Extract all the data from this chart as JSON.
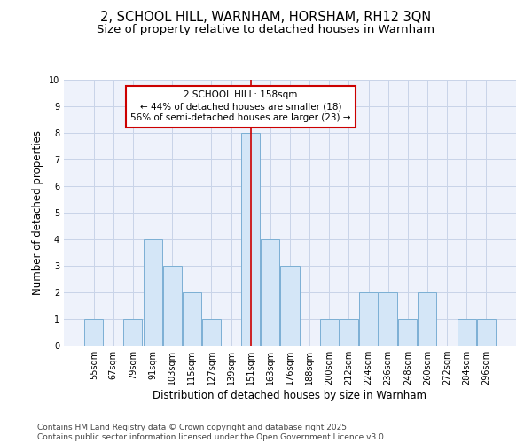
{
  "title1": "2, SCHOOL HILL, WARNHAM, HORSHAM, RH12 3QN",
  "title2": "Size of property relative to detached houses in Warnham",
  "xlabel": "Distribution of detached houses by size in Warnham",
  "ylabel": "Number of detached properties",
  "bins": [
    "55sqm",
    "67sqm",
    "79sqm",
    "91sqm",
    "103sqm",
    "115sqm",
    "127sqm",
    "139sqm",
    "151sqm",
    "163sqm",
    "176sqm",
    "188sqm",
    "200sqm",
    "212sqm",
    "224sqm",
    "236sqm",
    "248sqm",
    "260sqm",
    "272sqm",
    "284sqm",
    "296sqm"
  ],
  "values": [
    1,
    0,
    1,
    4,
    3,
    2,
    1,
    0,
    8,
    4,
    3,
    0,
    1,
    1,
    2,
    2,
    1,
    2,
    0,
    1,
    1
  ],
  "bar_color": "#d4e6f7",
  "bar_edge_color": "#7bafd4",
  "vline_x": 8,
  "vline_color": "#cc0000",
  "annotation_text": "2 SCHOOL HILL: 158sqm\n← 44% of detached houses are smaller (18)\n56% of semi-detached houses are larger (23) →",
  "annotation_box_color": "#cc0000",
  "ylim": [
    0,
    10
  ],
  "yticks": [
    0,
    1,
    2,
    3,
    4,
    5,
    6,
    7,
    8,
    9,
    10
  ],
  "grid_color": "#c8d4e8",
  "background_color": "#eef2fb",
  "footer": "Contains HM Land Registry data © Crown copyright and database right 2025.\nContains public sector information licensed under the Open Government Licence v3.0.",
  "title_fontsize": 10.5,
  "subtitle_fontsize": 9.5,
  "axis_label_fontsize": 8.5,
  "tick_fontsize": 7,
  "annotation_fontsize": 7.5,
  "footer_fontsize": 6.5
}
